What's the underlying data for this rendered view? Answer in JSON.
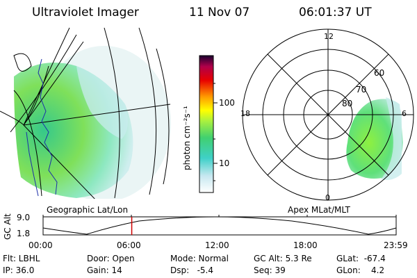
{
  "header": {
    "instrument": "Ultraviolet Imager",
    "date": "11 Nov 07",
    "time": "06:01:37 UT"
  },
  "colorbar": {
    "unit_label": "photon cm⁻²s⁻¹",
    "ticks": [
      "100",
      "10"
    ]
  },
  "left_panel": {
    "caption": "Geographic Lat/Lon"
  },
  "right_panel": {
    "caption": "Apex MLat/MLT",
    "mlt_labels": [
      "12",
      "6",
      "0",
      "18"
    ],
    "mlat_labels": [
      "60",
      "70",
      "80"
    ]
  },
  "timeline": {
    "ylabel": "GC Alt",
    "y_ticks": [
      "9.0",
      "1.8"
    ],
    "x_ticks": [
      "00:00",
      "06:00",
      "12:00",
      "18:00",
      "23:59"
    ],
    "marker_time_fraction": 0.2511
  },
  "status": {
    "flt": "Flt: LBHL",
    "ip": "IP: 36.0",
    "door": "Door: Open",
    "gain": "Gain: 14",
    "mode": "Mode: Normal",
    "dsp": "Dsp:   -5.4",
    "gc_alt": "GC Alt: 5.3 Re",
    "seq": "Seq: 39",
    "glat": "GLat:  -67.4",
    "glon": "GLon:    4.2"
  },
  "colors": {
    "marker": "#d00000",
    "coast": "#1c2fa8"
  }
}
